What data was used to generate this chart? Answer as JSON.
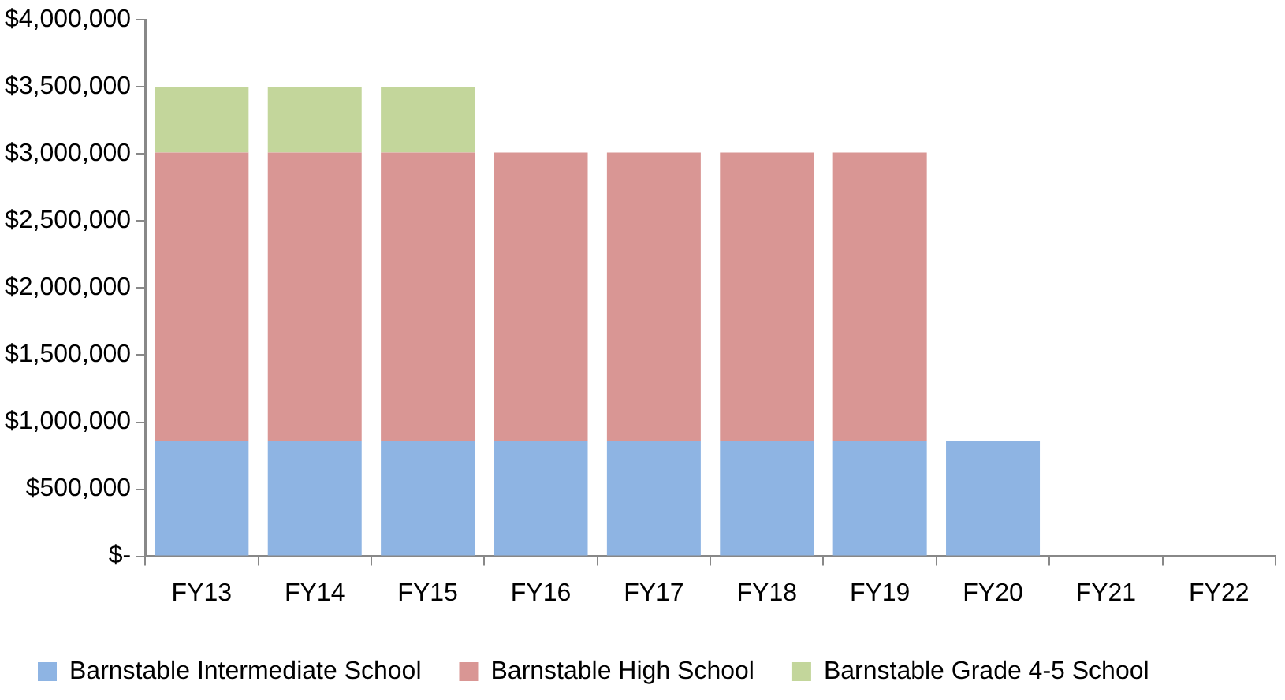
{
  "chart_data": {
    "type": "bar",
    "stacked": true,
    "categories": [
      "FY13",
      "FY14",
      "FY15",
      "FY16",
      "FY17",
      "FY18",
      "FY19",
      "FY20",
      "FY21",
      "FY22"
    ],
    "series": [
      {
        "name": "Barnstable Intermediate School",
        "color": "#8eb4e3",
        "values": [
          860000,
          860000,
          860000,
          860000,
          860000,
          860000,
          860000,
          860000,
          0,
          0
        ]
      },
      {
        "name": "Barnstable High School",
        "color": "#d99694",
        "values": [
          2150000,
          2150000,
          2150000,
          2150000,
          2150000,
          2150000,
          2150000,
          0,
          0,
          0
        ]
      },
      {
        "name": "Barnstable Grade 4-5 School",
        "color": "#c3d69b",
        "values": [
          490000,
          490000,
          490000,
          0,
          0,
          0,
          0,
          0,
          0,
          0
        ]
      }
    ],
    "ylim": [
      0,
      4000000
    ],
    "yticks": [
      {
        "value": 0,
        "label": "$-"
      },
      {
        "value": 500000,
        "label": "$500,000"
      },
      {
        "value": 1000000,
        "label": "$1,000,000"
      },
      {
        "value": 1500000,
        "label": "$1,500,000"
      },
      {
        "value": 2000000,
        "label": "$2,000,000"
      },
      {
        "value": 2500000,
        "label": "$2,500,000"
      },
      {
        "value": 3000000,
        "label": "$3,000,000"
      },
      {
        "value": 3500000,
        "label": "$3,500,000"
      },
      {
        "value": 4000000,
        "label": "$4,000,000"
      }
    ],
    "grid": false,
    "legend": "bottom"
  }
}
